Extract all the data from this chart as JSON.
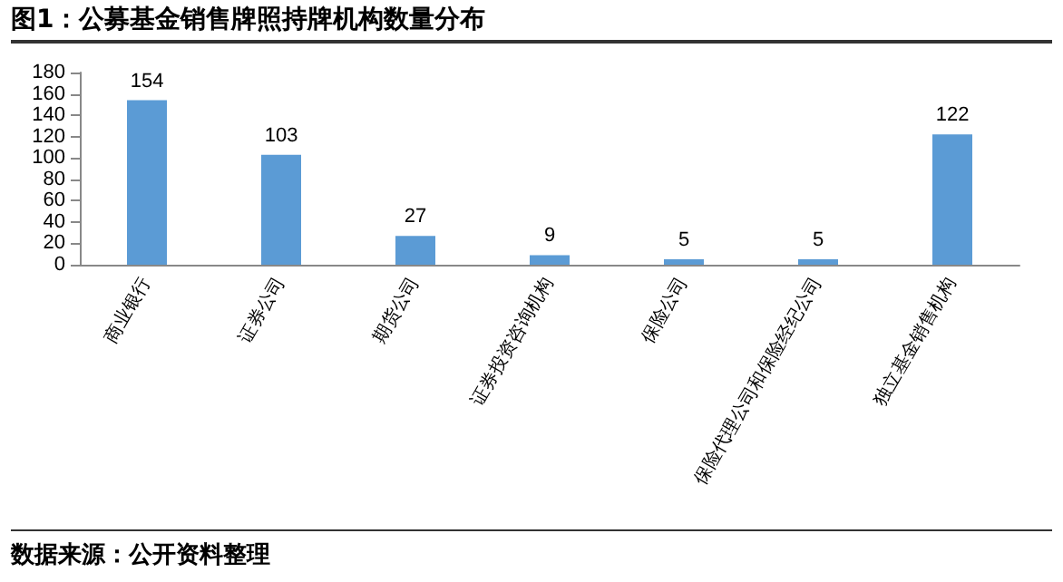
{
  "chart_data": {
    "type": "bar",
    "title": "图1：公募基金销售牌照持牌机构数量分布",
    "categories": [
      "商业银行",
      "证券公司",
      "期货公司",
      "证券投资咨询机构",
      "保险公司",
      "保险代理公司和保险经纪公司",
      "独立基金销售机构"
    ],
    "values": [
      154,
      103,
      27,
      9,
      5,
      5,
      122
    ],
    "color": "#5b9bd5",
    "ylim": [
      0,
      180
    ],
    "yticks": [
      0,
      20,
      40,
      60,
      80,
      100,
      120,
      140,
      160,
      180
    ],
    "grid": false,
    "data_labels": true,
    "annotations": [
      "数据来源：公开资料整理"
    ]
  }
}
